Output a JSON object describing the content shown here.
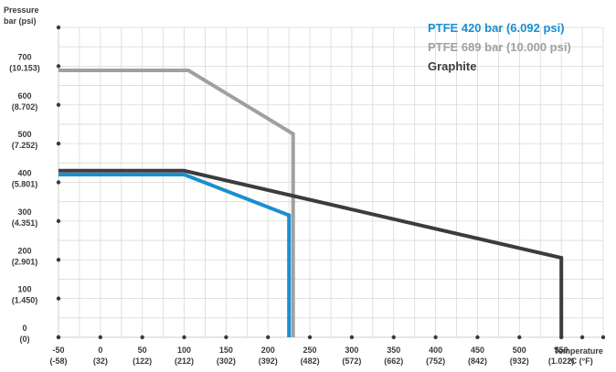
{
  "chart_data": {
    "type": "line",
    "ylabel": [
      "Pressure",
      "bar (psi)"
    ],
    "xlabel": [
      "Temperature",
      "°C (°F)"
    ],
    "xlim": [
      -50,
      600
    ],
    "ylim": [
      0,
      800
    ],
    "grid": true,
    "legend_position": "top-right",
    "x_ticks": [
      {
        "value": -50,
        "c": "-50",
        "f": "(-58)"
      },
      {
        "value": 0,
        "c": "0",
        "f": "(32)"
      },
      {
        "value": 50,
        "c": "50",
        "f": "(122)"
      },
      {
        "value": 100,
        "c": "100",
        "f": "(212)"
      },
      {
        "value": 150,
        "c": "150",
        "f": "(302)"
      },
      {
        "value": 200,
        "c": "200",
        "f": "(392)"
      },
      {
        "value": 250,
        "c": "250",
        "f": "(482)"
      },
      {
        "value": 300,
        "c": "300",
        "f": "(572)"
      },
      {
        "value": 350,
        "c": "350",
        "f": "(662)"
      },
      {
        "value": 400,
        "c": "400",
        "f": "(752)"
      },
      {
        "value": 450,
        "c": "450",
        "f": "(842)"
      },
      {
        "value": 500,
        "c": "500",
        "f": "(932)"
      },
      {
        "value": 550,
        "c": "550",
        "f": "(1.022)"
      }
    ],
    "y_ticks": [
      {
        "value": 0,
        "bar": "0",
        "psi": "(0)"
      },
      {
        "value": 100,
        "bar": "100",
        "psi": "(1.450)"
      },
      {
        "value": 200,
        "bar": "200",
        "psi": "(2.901)"
      },
      {
        "value": 300,
        "bar": "300",
        "psi": "(4.351)"
      },
      {
        "value": 400,
        "bar": "400",
        "psi": "(5.801)"
      },
      {
        "value": 500,
        "bar": "500",
        "psi": "(7.252)"
      },
      {
        "value": 600,
        "bar": "600",
        "psi": "(8.702)"
      },
      {
        "value": 700,
        "bar": "700",
        "psi": "(10.153)"
      }
    ],
    "series": [
      {
        "name": "PTFE 420 bar (6.092 psi)",
        "color": "#1a8fd0",
        "x": [
          -50,
          100,
          225,
          225
        ],
        "y": [
          420,
          420,
          315,
          0
        ]
      },
      {
        "name": "PTFE 689 bar (10.000 psi)",
        "color": "#a0a0a0",
        "x": [
          -50,
          105,
          230,
          230
        ],
        "y": [
          689,
          689,
          525,
          0
        ]
      },
      {
        "name": "Graphite",
        "color": "#3c3c3c",
        "x": [
          -50,
          100,
          550,
          550
        ],
        "y": [
          430,
          430,
          205,
          0
        ]
      }
    ]
  }
}
